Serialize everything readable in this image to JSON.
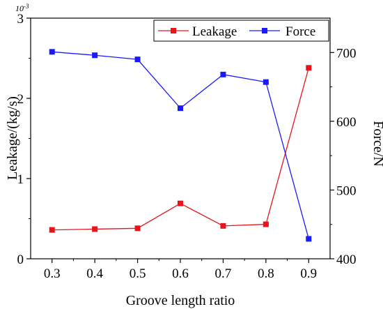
{
  "chart_data": {
    "type": "line",
    "title": "",
    "xlabel": "Groove length ratio",
    "ylabel": "Leakage/(kg/s)",
    "y2label": "Force/N",
    "y_exponent_label": "10",
    "y_exponent_power": "-3",
    "x": [
      0.3,
      0.4,
      0.5,
      0.6,
      0.7,
      0.8,
      0.9
    ],
    "x_ticks": [
      "0.3",
      "0.4",
      "0.5",
      "0.6",
      "0.7",
      "0.8",
      "0.9"
    ],
    "xlim": [
      0.25,
      0.95
    ],
    "ylim": [
      0,
      3
    ],
    "y_ticks": [
      "0",
      "1",
      "2",
      "3"
    ],
    "y2lim": [
      400,
      750
    ],
    "y2_ticks": [
      "400",
      "500",
      "600",
      "700"
    ],
    "legend_position": "top-right",
    "series": [
      {
        "name": "Leakage",
        "axis": "left",
        "color": "#e8141c",
        "values": [
          0.36,
          0.37,
          0.38,
          0.69,
          0.41,
          0.43,
          2.38
        ]
      },
      {
        "name": "Force",
        "axis": "right",
        "color": "#1a1aff",
        "values": [
          701,
          696,
          690,
          619,
          668,
          657,
          429
        ]
      }
    ]
  }
}
